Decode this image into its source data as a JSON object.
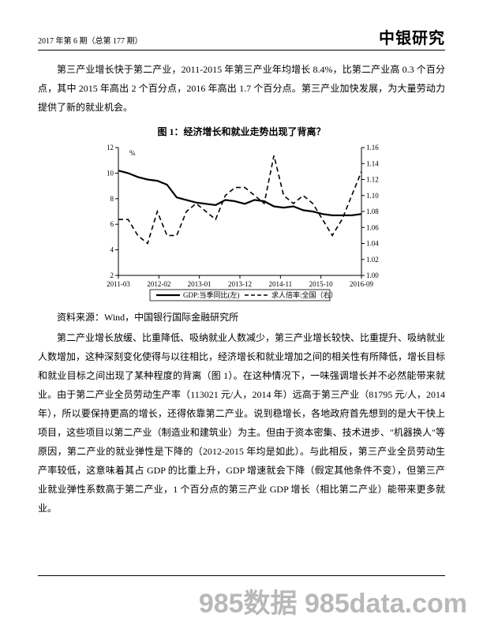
{
  "header": {
    "issue": "2017 年第 6 期（总第 177 期）",
    "brand": "中银研究"
  },
  "para1": "第三产业增长快于第二产业，2011-2015 年第三产业年均增长 8.4%，比第二产业高 0.3 个百分点，其中 2015 年高出 2 个百分点，2016 年高出 1.7 个百分点。第三产业加快发展，为大量劳动力提供了新的就业机会。",
  "figure": {
    "title": "图 1：经济增长和就业走势出现了背离？",
    "legend": {
      "left": "GDP:当季同比(左)",
      "right": "求人倍率:全国（右）"
    },
    "y_left": {
      "min": 2,
      "max": 12,
      "step": 2,
      "unit": "%"
    },
    "y_right": {
      "min": 1.0,
      "max": 1.16,
      "step": 0.02
    },
    "x_labels": [
      "2011-03",
      "2012-02",
      "2013-01",
      "2013-12",
      "2014-11",
      "2015-10",
      "2016-09"
    ],
    "series_gdp": {
      "color": "#000000",
      "width": 2.2,
      "dash": "none",
      "points": [
        10.2,
        10.0,
        9.7,
        9.5,
        9.4,
        9.1,
        8.1,
        7.9,
        7.7,
        7.6,
        7.5,
        7.9,
        7.8,
        7.6,
        7.9,
        7.8,
        7.4,
        7.3,
        7.4,
        7.1,
        7.0,
        6.8,
        6.7,
        6.7,
        6.7,
        6.8
      ]
    },
    "series_ratio": {
      "color": "#000000",
      "width": 1.6,
      "dash": "6,4",
      "points": [
        1.07,
        1.07,
        1.05,
        1.04,
        1.08,
        1.05,
        1.05,
        1.08,
        1.09,
        1.08,
        1.07,
        1.1,
        1.11,
        1.11,
        1.1,
        1.09,
        1.15,
        1.1,
        1.09,
        1.1,
        1.09,
        1.07,
        1.05,
        1.07,
        1.1,
        1.13
      ]
    },
    "background_color": "#ffffff",
    "axis_color": "#000000",
    "tick_fontsize": 9,
    "legend_fontsize": 9
  },
  "source": "资料来源：Wind，中国银行国际金融研究所",
  "para2": "第二产业增长放缓、比重降低、吸纳就业人数减少，第三产业增长较快、比重提升、吸纳就业人数增加，这种深刻变化使得与以往相比，经济增长和就业增加之间的相关性有所降低，增长目标和就业目标之间出现了某种程度的背离（图 1）。在这种情况下，一味强调增长并不必然能带来就业。由于第二产业全员劳动生产率（113021 元/人，2014 年）远高于第三产业（81795 元/人，2014 年），所以要保持更高的增长，还得依靠第二产业。说到稳增长，各地政府首先想到的是大干快上项目，这些项目以第二产业（制造业和建筑业）为主。但由于资本密集、技术进步、\"机器换人\"等原因，第二产业的就业弹性是下降的（2012-2015 年均是如此）。与此相反，第三产业全员劳动生产率较低，这意味着其占 GDP 的比重上升，GDP 增速就会下降（假定其他条件不变），但第三产业就业弹性系数高于第二产业，1 个百分点的第三产业 GDP 增长（相比第二产业）能带来更多就业。",
  "watermark": "985数据 985data.com"
}
